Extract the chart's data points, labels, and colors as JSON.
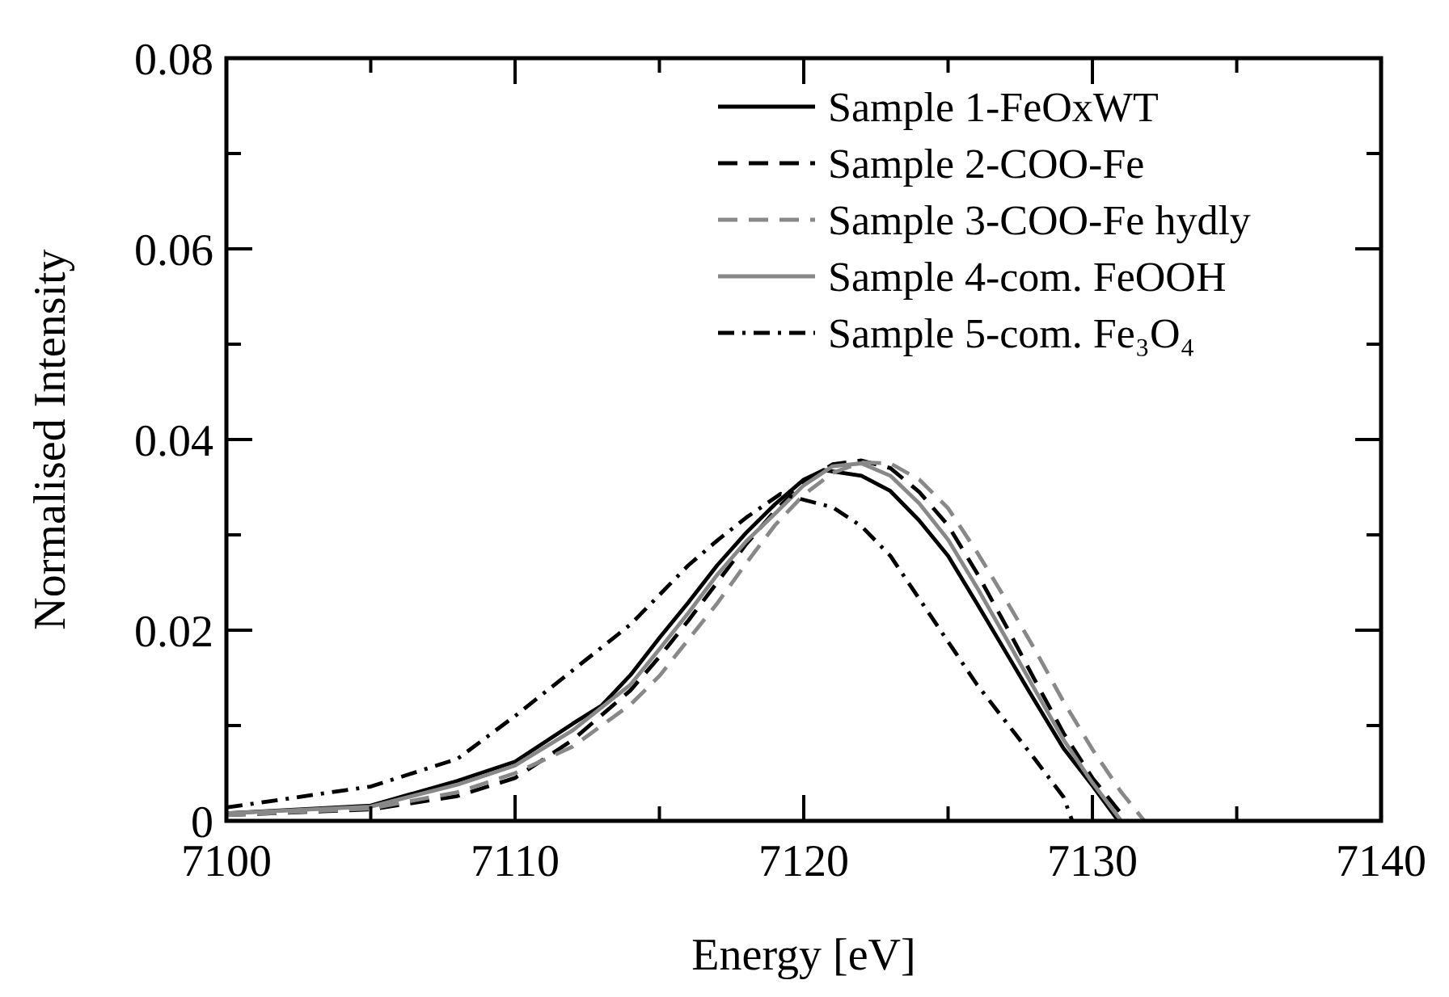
{
  "chart_data": {
    "type": "line",
    "xlabel": "Energy [eV]",
    "ylabel": "Normalised Intensity",
    "xlim": [
      7100,
      7140
    ],
    "xticks": [
      7100,
      7110,
      7120,
      7130,
      7140
    ],
    "ylim": [
      0,
      0.08
    ],
    "yticks": [
      0,
      0.02,
      0.04,
      0.06,
      0.08
    ],
    "legend": "top right",
    "grid": false,
    "series": [
      {
        "name": "Sample 1-FeOxWT",
        "color": "#000000",
        "line_style": "solid",
        "x": [
          7100,
          7105,
          7108,
          7110,
          7112,
          7113,
          7114,
          7115,
          7116,
          7117,
          7118,
          7119,
          7120,
          7120.7,
          7122,
          7123,
          7124,
          7125,
          7126,
          7127,
          7128,
          7129,
          7130,
          7130.9
        ],
        "values": [
          0.0008,
          0.0016,
          0.0042,
          0.0062,
          0.0102,
          0.0121,
          0.0153,
          0.0192,
          0.0229,
          0.0268,
          0.0302,
          0.0332,
          0.0358,
          0.0368,
          0.0362,
          0.0346,
          0.0315,
          0.0278,
          0.0228,
          0.0177,
          0.0126,
          0.0076,
          0.0037,
          0
        ]
      },
      {
        "name": "Sample 2-COO-Fe",
        "color": "#000000",
        "line_style": "dashed",
        "x": [
          7100,
          7105,
          7108,
          7110,
          7112,
          7114,
          7115,
          7116,
          7117,
          7118,
          7119,
          7120,
          7121,
          7122,
          7123,
          7124,
          7125,
          7126,
          7127,
          7128,
          7129,
          7130,
          7131.2
        ],
        "values": [
          0.0006,
          0.0012,
          0.0026,
          0.0045,
          0.0085,
          0.0137,
          0.0172,
          0.021,
          0.025,
          0.029,
          0.0325,
          0.0355,
          0.0374,
          0.0378,
          0.037,
          0.0345,
          0.031,
          0.026,
          0.0205,
          0.0148,
          0.0092,
          0.0045,
          0
        ]
      },
      {
        "name": "Sample 3-COO-Fe hydly",
        "color": "#888888",
        "line_style": "dashed",
        "x": [
          7100,
          7105,
          7108,
          7110,
          7112,
          7114,
          7115,
          7116,
          7117,
          7118,
          7119,
          7120,
          7121,
          7122,
          7123,
          7124,
          7125,
          7126,
          7127,
          7128,
          7129,
          7130,
          7131,
          7131.8
        ],
        "values": [
          0.0006,
          0.0013,
          0.003,
          0.005,
          0.0078,
          0.0122,
          0.0152,
          0.019,
          0.0228,
          0.027,
          0.031,
          0.0342,
          0.0365,
          0.0376,
          0.0375,
          0.0358,
          0.0328,
          0.0282,
          0.0232,
          0.018,
          0.0125,
          0.0075,
          0.003,
          0
        ]
      },
      {
        "name": "Sample 4-com. FeOOH",
        "color": "#888888",
        "line_style": "solid",
        "x": [
          7100,
          7105,
          7108,
          7110,
          7112,
          7114,
          7115,
          7116,
          7117,
          7118,
          7119,
          7120,
          7121,
          7122,
          7123,
          7124,
          7125,
          7126,
          7127,
          7128,
          7129,
          7130,
          7131
        ],
        "values": [
          0.0008,
          0.0015,
          0.0038,
          0.0058,
          0.0095,
          0.0143,
          0.018,
          0.0218,
          0.0258,
          0.0293,
          0.0322,
          0.0352,
          0.0372,
          0.0375,
          0.0362,
          0.0333,
          0.0295,
          0.0245,
          0.0192,
          0.0138,
          0.0085,
          0.004,
          0
        ]
      },
      {
        "name": "Sample 5-com. Fe₃O₄",
        "color": "#000000",
        "line_style": "dashdot",
        "x": [
          7100,
          7105,
          7108,
          7110,
          7112,
          7114,
          7116,
          7117,
          7118,
          7119.2,
          7121,
          7122,
          7123,
          7124,
          7125,
          7126,
          7127,
          7128,
          7129,
          7129.3
        ],
        "values": [
          0.0014,
          0.0036,
          0.0065,
          0.011,
          0.0158,
          0.0206,
          0.0268,
          0.0294,
          0.0318,
          0.0343,
          0.0329,
          0.0309,
          0.0278,
          0.0233,
          0.0188,
          0.0143,
          0.0104,
          0.0065,
          0.0025,
          0
        ]
      }
    ]
  }
}
